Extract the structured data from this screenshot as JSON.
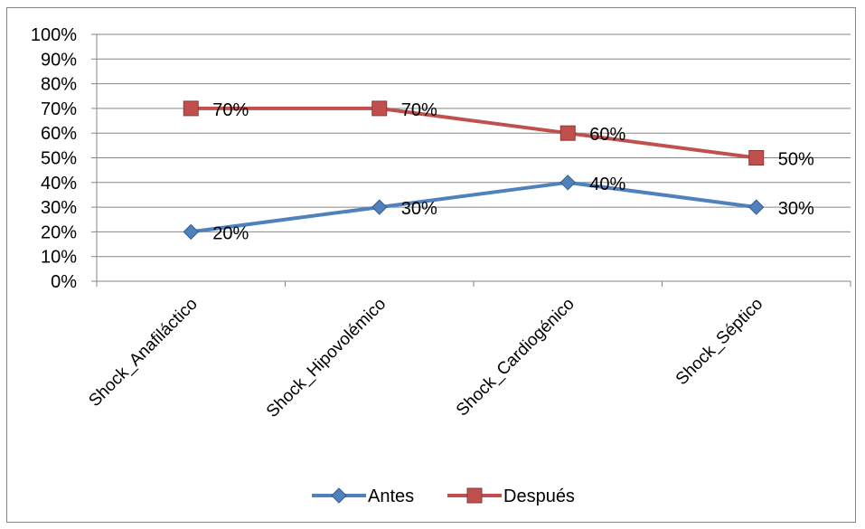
{
  "chart_data": {
    "type": "line",
    "categories": [
      "Shock_Anafiláctico",
      "Shock_Hipovolémico",
      "Shock_Cardiogénico",
      "Shock_Séptico"
    ],
    "series": [
      {
        "name": "Antes",
        "values": [
          20,
          30,
          40,
          30
        ],
        "labels": [
          "20%",
          "30%",
          "40%",
          "30%"
        ],
        "color": "#4F81BD",
        "marker": "diamond"
      },
      {
        "name": "Después",
        "values": [
          70,
          70,
          60,
          50
        ],
        "labels": [
          "70%",
          "70%",
          "60%",
          "50%"
        ],
        "color": "#C0504D",
        "marker": "square"
      }
    ],
    "ylim": [
      0,
      100
    ],
    "yticks": [
      "0%",
      "10%",
      "20%",
      "30%",
      "40%",
      "50%",
      "60%",
      "70%",
      "80%",
      "90%",
      "100%"
    ],
    "grid": true,
    "legend": "bottom",
    "title": "",
    "xlabel": "",
    "ylabel": ""
  }
}
